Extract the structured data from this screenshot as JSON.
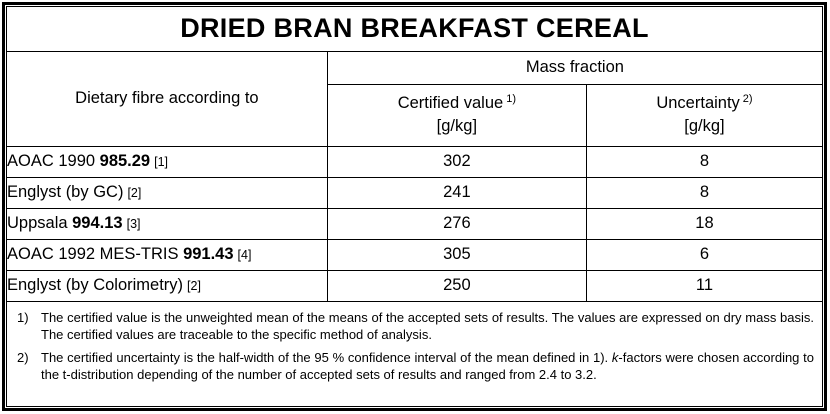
{
  "title": "DRIED BRAN BREAKFAST CEREAL",
  "table": {
    "col1_header": "Dietary fibre according to",
    "group_header": "Mass fraction",
    "columns": [
      {
        "label": "Certified value",
        "sup": "1)",
        "unit": "[g/kg]"
      },
      {
        "label": "Uncertainty",
        "sup": "2)",
        "unit": "[g/kg]"
      }
    ],
    "rows": [
      {
        "prefix": "AOAC 1990 ",
        "bold": "985.29",
        "ref": "[1]",
        "certified_value": "302",
        "uncertainty": "8"
      },
      {
        "prefix": "Englyst (by GC)",
        "bold": "",
        "ref": "[2]",
        "certified_value": "241",
        "uncertainty": "8"
      },
      {
        "prefix": "Uppsala ",
        "bold": "994.13",
        "ref": "[3]",
        "certified_value": "276",
        "uncertainty": "18"
      },
      {
        "prefix": "AOAC 1992 MES-TRIS ",
        "bold": "991.43",
        "ref": "[4]",
        "certified_value": "305",
        "uncertainty": "6"
      },
      {
        "prefix": "Englyst (by Colorimetry)",
        "bold": "",
        "ref": "[2]",
        "certified_value": "250",
        "uncertainty": "11"
      }
    ]
  },
  "footnotes": [
    {
      "marker": "1)",
      "text_before": "The certified value is the unweighted mean of the means of the accepted sets of results. The values are expressed on dry mass basis. The certified values are traceable to the specific method of analysis.",
      "italic": "",
      "text_after": ""
    },
    {
      "marker": "2)",
      "text_before": "The certified uncertainty is the half-width of the 95 % confidence interval of the mean defined in 1). ",
      "italic": "k",
      "text_after": "-factors were chosen according to the t-distribution depending of the number of accepted sets of results and ranged from 2.4 to 3.2."
    }
  ],
  "colors": {
    "text": "#000000",
    "background": "#ffffff",
    "border": "#000000"
  }
}
